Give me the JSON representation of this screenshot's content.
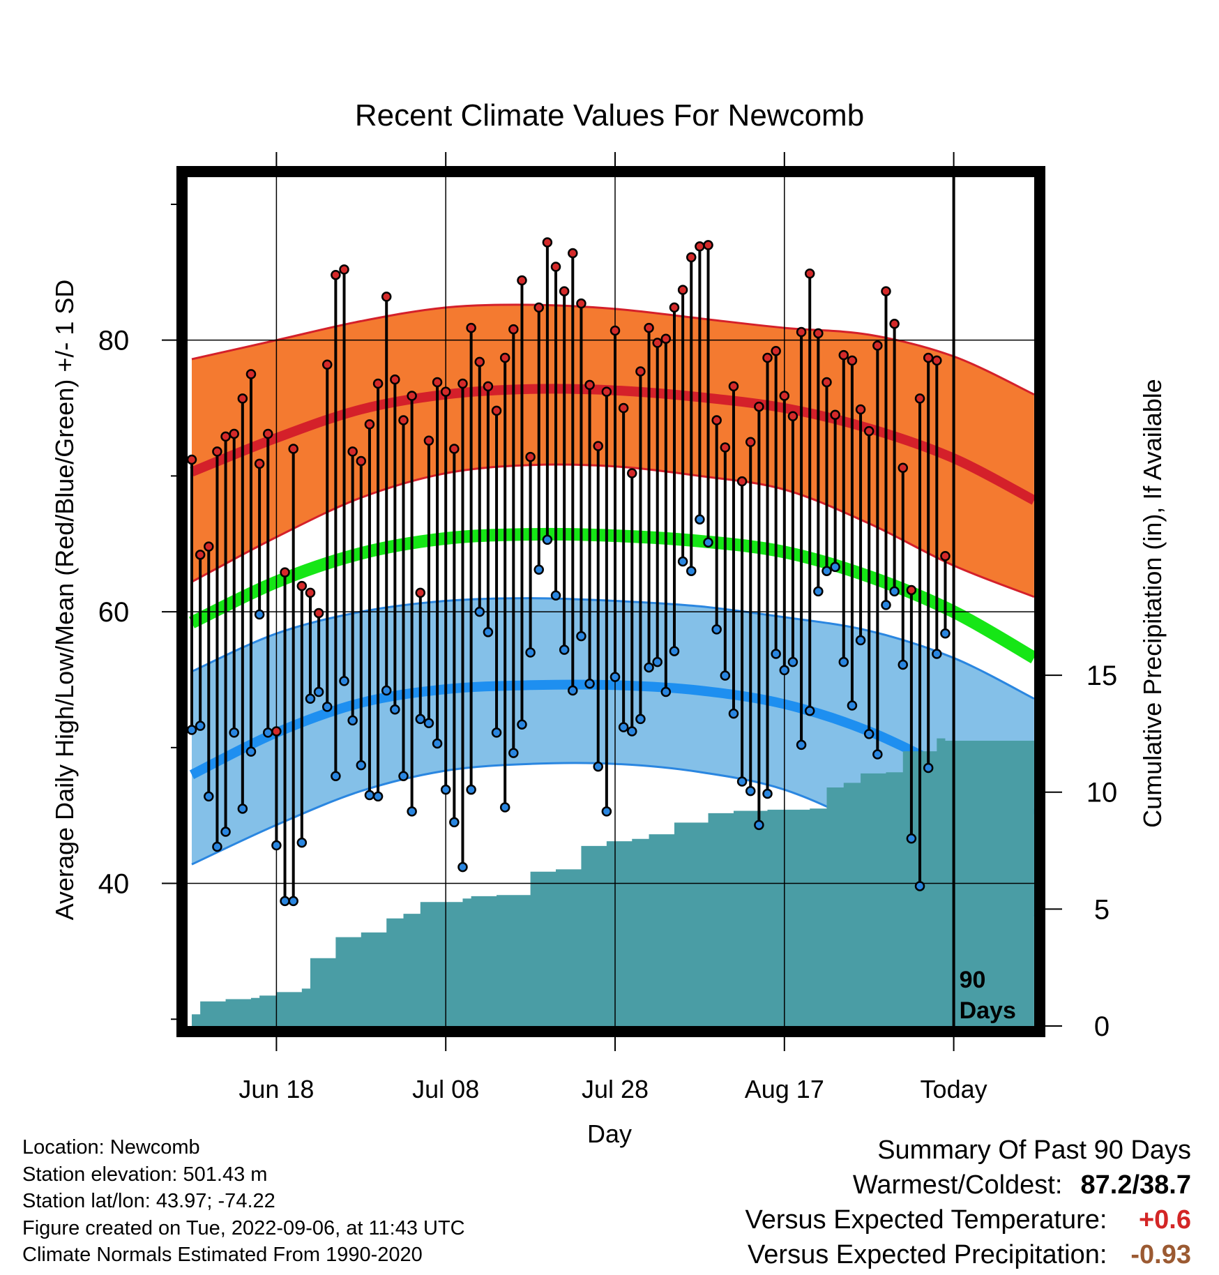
{
  "title": "Recent Climate Values For Newcomb",
  "chart_data": {
    "type": "line",
    "title": "Recent Climate Values For Newcomb",
    "xlabel": "Day",
    "ylabel": "Average Daily High/Low/Mean (Red/Blue/Green) +/- 1 SD",
    "y2label": "Cumulative Precipitation (in), If Available",
    "ylim": [
      29.5,
      92
    ],
    "y_ticks": [
      40,
      60,
      80
    ],
    "y2lim": [
      0,
      36.3
    ],
    "y2_ticks": [
      0,
      5,
      10,
      15
    ],
    "xlim": [
      -0.5,
      99.5
    ],
    "x_ticks": [
      {
        "day": 10,
        "label": "Jun 18"
      },
      {
        "day": 30,
        "label": "Jul 08"
      },
      {
        "day": 50,
        "label": "Jul 28"
      },
      {
        "day": 70,
        "label": "Aug 17"
      },
      {
        "day": 90,
        "label": "Today"
      }
    ],
    "today_marker": {
      "day": 90,
      "label_line1": "90",
      "label_line2": "Days"
    },
    "normal_high": {
      "day": [
        0,
        10,
        20,
        30,
        40,
        50,
        60,
        70,
        80,
        90,
        99.5
      ],
      "values": [
        70.3,
        72.8,
        74.9,
        76.0,
        76.4,
        76.3,
        75.8,
        75.0,
        73.5,
        71.3,
        68.2
      ]
    },
    "normal_high_sd": {
      "upper": [
        78.6,
        80.0,
        81.4,
        82.4,
        82.6,
        82.3,
        81.6,
        80.9,
        80.4,
        78.8,
        76.0
      ],
      "lower": [
        62.2,
        65.5,
        68.4,
        70.2,
        70.8,
        70.7,
        70.0,
        69.0,
        66.5,
        63.4,
        61.1
      ]
    },
    "normal_mean": {
      "values": [
        59.2,
        62.2,
        64.3,
        65.4,
        65.7,
        65.6,
        65.2,
        64.4,
        62.6,
        60.0,
        56.6
      ]
    },
    "normal_low": {
      "values": [
        48.0,
        51.1,
        53.3,
        54.3,
        54.6,
        54.6,
        54.2,
        53.2,
        51.2,
        48.2,
        45.1
      ]
    },
    "normal_low_sd": {
      "upper": [
        55.6,
        58.4,
        60.0,
        60.8,
        61.0,
        60.8,
        60.4,
        59.6,
        58.6,
        56.6,
        53.6
      ],
      "lower": [
        41.4,
        44.3,
        46.8,
        48.3,
        48.8,
        48.8,
        48.2,
        46.9,
        44.1,
        40.3,
        37.6
      ]
    },
    "days": [
      0,
      1,
      2,
      3,
      4,
      5,
      6,
      7,
      8,
      9,
      10,
      11,
      12,
      13,
      14,
      15,
      16,
      17,
      18,
      19,
      20,
      21,
      22,
      23,
      24,
      25,
      26,
      27,
      28,
      29,
      30,
      31,
      32,
      33,
      34,
      35,
      36,
      37,
      38,
      39,
      40,
      41,
      42,
      43,
      44,
      45,
      46,
      47,
      48,
      49,
      50,
      51,
      52,
      53,
      54,
      55,
      56,
      57,
      58,
      59,
      60,
      61,
      62,
      63,
      64,
      65,
      66,
      67,
      68,
      69,
      70,
      71,
      72,
      73,
      74,
      75,
      76,
      77,
      78,
      79,
      80,
      81,
      82,
      83,
      84,
      85,
      86,
      87,
      88,
      89
    ],
    "high": [
      71.2,
      64.2,
      64.8,
      71.8,
      72.9,
      73.1,
      75.7,
      77.5,
      70.9,
      73.1,
      51.2,
      62.9,
      72.0,
      61.9,
      61.4,
      59.9,
      78.2,
      84.8,
      85.2,
      71.8,
      71.1,
      73.8,
      76.8,
      83.2,
      77.1,
      74.1,
      75.9,
      61.4,
      72.6,
      76.9,
      76.2,
      72.0,
      76.8,
      80.9,
      78.4,
      76.6,
      74.8,
      78.7,
      80.8,
      84.4,
      71.4,
      82.4,
      87.2,
      85.4,
      83.6,
      86.4,
      82.7,
      76.7,
      72.2,
      76.2,
      80.7,
      75.0,
      70.2,
      77.7,
      80.9,
      79.8,
      80.1,
      82.4,
      83.7,
      86.1,
      86.9,
      87.0,
      74.1,
      72.1,
      76.6,
      69.6,
      72.5,
      75.1,
      78.7,
      79.2,
      75.9,
      74.4,
      80.6,
      84.9,
      80.5,
      76.9,
      74.5,
      78.9,
      78.5,
      74.9,
      73.3,
      79.6,
      83.6,
      81.2,
      70.6,
      61.6,
      75.7,
      78.7,
      78.5,
      64.1
    ],
    "low": [
      51.3,
      51.6,
      46.4,
      42.7,
      43.8,
      51.1,
      45.5,
      49.7,
      59.8,
      51.1,
      42.8,
      38.7,
      38.7,
      43.0,
      53.6,
      54.1,
      53.0,
      47.9,
      54.9,
      52.0,
      48.7,
      46.5,
      46.4,
      54.2,
      52.8,
      47.9,
      45.3,
      52.1,
      51.8,
      50.3,
      46.9,
      44.5,
      41.2,
      46.9,
      60.0,
      58.5,
      51.1,
      45.6,
      49.6,
      51.7,
      57.0,
      63.1,
      65.3,
      61.2,
      57.2,
      54.2,
      58.2,
      54.7,
      48.6,
      45.3,
      55.2,
      51.5,
      51.2,
      52.1,
      55.9,
      56.3,
      54.1,
      57.1,
      63.7,
      63.0,
      66.8,
      65.1,
      58.7,
      55.3,
      52.5,
      47.5,
      46.8,
      44.3,
      46.6,
      56.9,
      55.7,
      56.3,
      50.2,
      52.7,
      61.5,
      63.0,
      63.3,
      56.3,
      53.1,
      57.9,
      51.0,
      49.5,
      60.5,
      61.5,
      56.1,
      43.3,
      39.8,
      48.5,
      56.9,
      58.4
    ],
    "precip_steps": [
      {
        "x0": 0,
        "x1": 1,
        "v": 0.5
      },
      {
        "x0": 1,
        "x1": 4,
        "v": 1.05
      },
      {
        "x0": 4,
        "x1": 7,
        "v": 1.15
      },
      {
        "x0": 7,
        "x1": 8,
        "v": 1.2
      },
      {
        "x0": 8,
        "x1": 10,
        "v": 1.3
      },
      {
        "x0": 10,
        "x1": 13,
        "v": 1.45
      },
      {
        "x0": 13,
        "x1": 14,
        "v": 1.6
      },
      {
        "x0": 14,
        "x1": 17,
        "v": 2.9
      },
      {
        "x0": 17,
        "x1": 20,
        "v": 3.8
      },
      {
        "x0": 20,
        "x1": 23,
        "v": 4.0
      },
      {
        "x0": 23,
        "x1": 25,
        "v": 4.6
      },
      {
        "x0": 25,
        "x1": 27,
        "v": 4.8
      },
      {
        "x0": 27,
        "x1": 30,
        "v": 5.3
      },
      {
        "x0": 30,
        "x1": 32,
        "v": 5.3
      },
      {
        "x0": 32,
        "x1": 33,
        "v": 5.45
      },
      {
        "x0": 33,
        "x1": 36,
        "v": 5.55
      },
      {
        "x0": 36,
        "x1": 40,
        "v": 5.6
      },
      {
        "x0": 40,
        "x1": 43,
        "v": 6.6
      },
      {
        "x0": 43,
        "x1": 46,
        "v": 6.7
      },
      {
        "x0": 46,
        "x1": 49,
        "v": 7.7
      },
      {
        "x0": 49,
        "x1": 52,
        "v": 7.9
      },
      {
        "x0": 52,
        "x1": 54,
        "v": 8.0
      },
      {
        "x0": 54,
        "x1": 57,
        "v": 8.2
      },
      {
        "x0": 57,
        "x1": 61,
        "v": 8.7
      },
      {
        "x0": 61,
        "x1": 64,
        "v": 9.1
      },
      {
        "x0": 64,
        "x1": 68,
        "v": 9.2
      },
      {
        "x0": 68,
        "x1": 73,
        "v": 9.25
      },
      {
        "x0": 73,
        "x1": 75,
        "v": 9.3
      },
      {
        "x0": 75,
        "x1": 77,
        "v": 10.2
      },
      {
        "x0": 77,
        "x1": 79,
        "v": 10.4
      },
      {
        "x0": 79,
        "x1": 82,
        "v": 10.8
      },
      {
        "x0": 82,
        "x1": 84,
        "v": 10.85
      },
      {
        "x0": 84,
        "x1": 87,
        "v": 11.75
      },
      {
        "x0": 87,
        "x1": 88,
        "v": 11.75
      },
      {
        "x0": 88,
        "x1": 89,
        "v": 12.3
      },
      {
        "x0": 89,
        "x1": 99.5,
        "v": 12.2
      }
    ]
  },
  "info": {
    "location": "Location: Newcomb",
    "elevation": "Station elevation: 501.43 m",
    "latlon": "Station lat/lon: 43.97; -74.22",
    "created": "Figure created on Tue, 2022-09-06, at 11:43 UTC",
    "normals": "Climate Normals Estimated From 1990-2020"
  },
  "summary": {
    "heading": "Summary Of Past 90 Days",
    "warm_cold_label": "Warmest/Coldest:",
    "warm_cold_value": "87.2/38.7",
    "temp_label": "Versus Expected Temperature:",
    "temp_value": "+0.6",
    "precip_label": "Versus Expected Precipitation:",
    "precip_value": "-0.93"
  },
  "colors": {
    "high_band": "#f47a30",
    "high_line": "#d4202a",
    "mean_line": "#16e616",
    "low_band": "#84c0e8",
    "low_line": "#1e8ff0",
    "precip": "#4a9da5",
    "high_dot": "#d42a2a",
    "low_dot": "#2a86e0",
    "temp_value": "#d32626",
    "precip_value": "#9b5a32"
  }
}
